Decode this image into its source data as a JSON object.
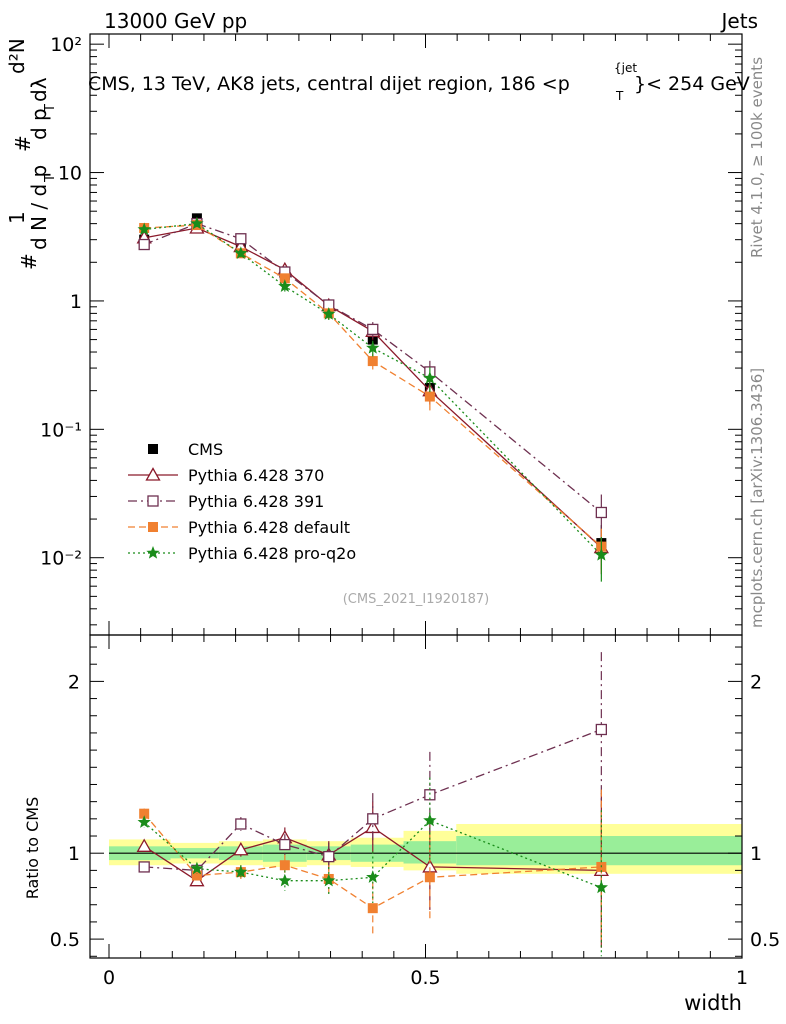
{
  "header": {
    "left": "13000 GeV pp",
    "right": "Jets"
  },
  "side_text": {
    "rivet": "Rivet 4.1.0, ≥ 100k events",
    "mcplots": "mcplots.cern.ch [arXiv:1306.3436]"
  },
  "chart_data": [
    {
      "type": "scatter",
      "role": "main",
      "title": "CMS, 13 TeV, AK8 jets, central dijet region, 186 < p_T^{jet} < 254 GeV",
      "title_main": "CMS, 13 TeV, AK8 jets, central dijet region, 186 <p",
      "title_sub": "T",
      "title_sup": "{jet",
      "title_tail": "}< 254 GeV",
      "ylabel": "1/(dN/dpT) d²N/(dpT dλ)",
      "ylabel_parts": [
        "#",
        "1",
        "d N / d p",
        "T",
        "#",
        "d p",
        "T",
        "dλ",
        "d²N"
      ],
      "yscale": "log",
      "ylim": [
        0.0025,
        120
      ],
      "xlim": [
        -0.03,
        1.0
      ],
      "ytick_labels": [
        "10⁻²",
        "10⁻¹",
        "1",
        "10",
        "10²"
      ],
      "watermark": "(CMS_2021_I1920187)",
      "legend_position": "lower-left",
      "x": [
        0.0556,
        0.1389,
        0.2083,
        0.2778,
        0.3472,
        0.4167,
        0.5069,
        0.7778
      ],
      "series": [
        {
          "name": "CMS",
          "marker": "filled-square",
          "color": "#000000",
          "values": [
            3.0,
            4.4,
            2.6,
            1.6,
            0.93,
            0.5,
            0.21,
            0.013
          ]
        },
        {
          "name": "Pythia 6.428 370",
          "marker": "open-triangle",
          "color": "#8b1a2b",
          "dash": "solid",
          "values": [
            3.1,
            3.7,
            2.65,
            1.75,
            0.92,
            0.58,
            0.2,
            0.012
          ]
        },
        {
          "name": "Pythia 6.428 391",
          "marker": "open-square",
          "color": "#6e3050",
          "dash": "dashdot",
          "values": [
            2.75,
            4.0,
            3.05,
            1.68,
            0.93,
            0.6,
            0.28,
            0.0225
          ]
        },
        {
          "name": "Pythia 6.428 default",
          "marker": "filled-square",
          "color": "#f08030",
          "dash": "dashed",
          "values": [
            3.7,
            3.9,
            2.35,
            1.5,
            0.8,
            0.34,
            0.18,
            0.0122
          ]
        },
        {
          "name": "Pythia 6.428 pro-q2o",
          "marker": "star",
          "color": "#1a8c1a",
          "dash": "dotted",
          "values": [
            3.6,
            4.0,
            2.35,
            1.3,
            0.79,
            0.43,
            0.25,
            0.0105
          ]
        }
      ]
    },
    {
      "type": "scatter",
      "role": "ratio",
      "ylabel": "Ratio to CMS",
      "xlabel": "width",
      "ylim": [
        0.39,
        2.27
      ],
      "ytick_labels": [
        "0.5",
        "1",
        "2"
      ],
      "xtick_labels": [
        "0",
        "0.5",
        "1"
      ],
      "bands": [
        {
          "x0": 0.0,
          "x1": 0.0972,
          "yellow": [
            0.93,
            1.08
          ],
          "green": [
            0.96,
            1.04
          ]
        },
        {
          "x0": 0.0972,
          "x1": 0.1736,
          "yellow": [
            0.94,
            1.06
          ],
          "green": [
            0.97,
            1.03
          ]
        },
        {
          "x0": 0.1736,
          "x1": 0.2431,
          "yellow": [
            0.93,
            1.07
          ],
          "green": [
            0.96,
            1.04
          ]
        },
        {
          "x0": 0.2431,
          "x1": 0.3125,
          "yellow": [
            0.92,
            1.08
          ],
          "green": [
            0.95,
            1.05
          ]
        },
        {
          "x0": 0.3125,
          "x1": 0.3819,
          "yellow": [
            0.93,
            1.07
          ],
          "green": [
            0.96,
            1.04
          ]
        },
        {
          "x0": 0.3819,
          "x1": 0.4653,
          "yellow": [
            0.92,
            1.09
          ],
          "green": [
            0.95,
            1.05
          ]
        },
        {
          "x0": 0.4653,
          "x1": 0.5486,
          "yellow": [
            0.9,
            1.13
          ],
          "green": [
            0.94,
            1.07
          ]
        },
        {
          "x0": 0.5486,
          "x1": 1.0,
          "yellow": [
            0.88,
            1.17
          ],
          "green": [
            0.93,
            1.1
          ]
        }
      ],
      "series": [
        {
          "name": "Pythia 6.428 370",
          "values": [
            1.04,
            0.84,
            1.02,
            1.09,
            0.99,
            1.15,
            0.92,
            0.9
          ],
          "errors": [
            0.03,
            0.03,
            0.04,
            0.06,
            0.08,
            0.15,
            0.25,
            0.45
          ]
        },
        {
          "name": "Pythia 6.428 391",
          "values": [
            0.92,
            0.9,
            1.17,
            1.05,
            0.98,
            1.2,
            1.34,
            1.72
          ],
          "errors": [
            0.03,
            0.03,
            0.04,
            0.06,
            0.08,
            0.15,
            0.25,
            0.45
          ]
        },
        {
          "name": "Pythia 6.428 default",
          "values": [
            1.23,
            0.87,
            0.89,
            0.93,
            0.85,
            0.68,
            0.86,
            0.92
          ],
          "errors": [
            0.03,
            0.03,
            0.04,
            0.06,
            0.08,
            0.15,
            0.25,
            0.45
          ]
        },
        {
          "name": "Pythia 6.428 pro-q2o",
          "values": [
            1.18,
            0.91,
            0.89,
            0.84,
            0.84,
            0.86,
            1.19,
            0.8
          ],
          "errors": [
            0.03,
            0.03,
            0.04,
            0.06,
            0.08,
            0.15,
            0.25,
            0.45
          ]
        }
      ]
    }
  ]
}
